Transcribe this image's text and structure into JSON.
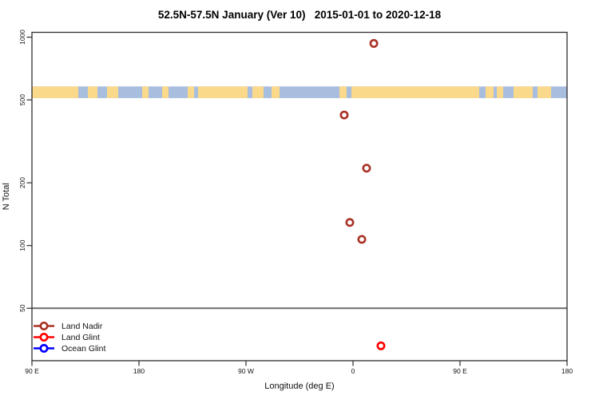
{
  "chart_data": {
    "type": "scatter",
    "title": "52.5N-57.5N January (Ver 10)   2015-01-01 to 2020-12-18",
    "xlabel": "Longitude (deg E)",
    "ylabel": "N Total",
    "x_axis": {
      "range": [
        90,
        540
      ],
      "ticks": [
        {
          "value": 90,
          "label": "90 E"
        },
        {
          "value": 180,
          "label": "180"
        },
        {
          "value": 270,
          "label": "90 W"
        },
        {
          "value": 360,
          "label": "0"
        },
        {
          "value": 450,
          "label": "90 E"
        },
        {
          "value": 540,
          "label": "180"
        }
      ]
    },
    "y_axis": {
      "scale": "log",
      "range": [
        28,
        1055
      ],
      "ticks": [
        {
          "value": 50,
          "label": "50"
        },
        {
          "value": 100,
          "label": "100"
        },
        {
          "value": 200,
          "label": "200"
        },
        {
          "value": 500,
          "label": "500"
        },
        {
          "value": 1000,
          "label": "1000"
        }
      ]
    },
    "reference_line": {
      "value": 50,
      "color": "#6b6b6b"
    },
    "map_strip": {
      "description": "land-ocean strip for latitude band 52.5N-57.5N",
      "value_range": [
        510,
        580
      ],
      "ocean_color": "#A8BEDE",
      "land_color": "#FBD98A",
      "land_segments_frac": [
        [
          0.0,
          0.0866
        ],
        [
          0.1045,
          0.1224
        ],
        [
          0.1403,
          0.1612
        ],
        [
          0.206,
          0.2179
        ],
        [
          0.2433,
          0.2552
        ],
        [
          0.291,
          0.303
        ],
        [
          0.3104,
          0.403
        ],
        [
          0.4119,
          0.4328
        ],
        [
          0.4478,
          0.4627
        ],
        [
          0.5746,
          0.5881
        ],
        [
          0.597,
          0.8358
        ],
        [
          0.8478,
          0.8627
        ],
        [
          0.8687,
          0.8806
        ],
        [
          0.9,
          0.9358
        ],
        [
          0.9448,
          0.9701
        ]
      ]
    },
    "series": [
      {
        "name": "Land Nadir",
        "color": "#A93226",
        "marker": "open-circle",
        "points": [
          {
            "x": 377.5,
            "y": 933
          },
          {
            "x": 352.6,
            "y": 423
          },
          {
            "x": 371.4,
            "y": 235
          },
          {
            "x": 357.3,
            "y": 129
          },
          {
            "x": 367.4,
            "y": 107
          }
        ]
      },
      {
        "name": "Land Glint",
        "color": "#FF0000",
        "marker": "open-circle",
        "points": [
          {
            "x": 383.5,
            "y": 33
          }
        ]
      },
      {
        "name": "Ocean Glint",
        "color": "#0000FF",
        "marker": "open-circle",
        "points": []
      }
    ],
    "legend": {
      "position": "bottom-left",
      "entries": [
        {
          "label": "Land Nadir",
          "color": "#A93226"
        },
        {
          "label": "Land Glint",
          "color": "#FF0000"
        },
        {
          "label": "Ocean Glint",
          "color": "#0000FF"
        }
      ]
    },
    "frame_color": "#2e2e2e"
  }
}
